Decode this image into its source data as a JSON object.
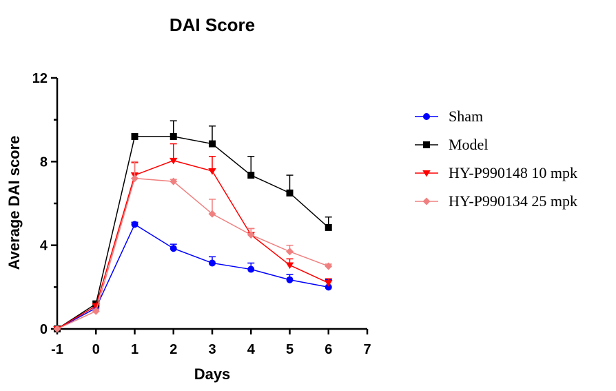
{
  "chart_data": {
    "type": "line",
    "title": "DAI Score",
    "xlabel": "Days",
    "ylabel": "Average DAI score",
    "xlim": [
      -1,
      7
    ],
    "ylim": [
      0,
      12
    ],
    "xticks": [
      "-1",
      "0",
      "1",
      "2",
      "3",
      "4",
      "5",
      "6",
      "7"
    ],
    "yticks": [
      "0",
      "4",
      "8",
      "12"
    ],
    "x": [
      -1,
      0,
      1,
      2,
      3,
      4,
      5,
      6
    ],
    "legend_position": "right",
    "grid": false,
    "series": [
      {
        "name": "Sham",
        "color": "#0000ff",
        "marker": "circle",
        "values": [
          0,
          1.0,
          5.0,
          3.85,
          3.15,
          2.85,
          2.35,
          2.0
        ],
        "errors": [
          0,
          0.1,
          0.1,
          0.2,
          0.3,
          0.3,
          0.25,
          0.35
        ]
      },
      {
        "name": "Model",
        "color": "#000000",
        "marker": "square",
        "values": [
          0,
          1.2,
          9.2,
          9.2,
          8.85,
          7.35,
          6.5,
          4.85
        ],
        "errors": [
          0,
          0.1,
          0.1,
          0.75,
          0.85,
          0.9,
          0.85,
          0.5
        ]
      },
      {
        "name": "HY-P990148 10 mpk",
        "color": "#ff0000",
        "marker": "triangle-down",
        "values": [
          0,
          1.1,
          7.35,
          8.05,
          7.55,
          4.5,
          3.05,
          2.2
        ],
        "errors": [
          0,
          0.1,
          0.6,
          0.8,
          0.7,
          0.3,
          0.3,
          0.2
        ]
      },
      {
        "name": "HY-P990134 25 mpk",
        "color": "#f08080",
        "marker": "diamond",
        "values": [
          0,
          0.85,
          7.2,
          7.05,
          5.5,
          4.5,
          3.7,
          3.0
        ],
        "errors": [
          0,
          0.1,
          0.8,
          0.1,
          0.7,
          0.3,
          0.3,
          0.1
        ]
      }
    ]
  }
}
